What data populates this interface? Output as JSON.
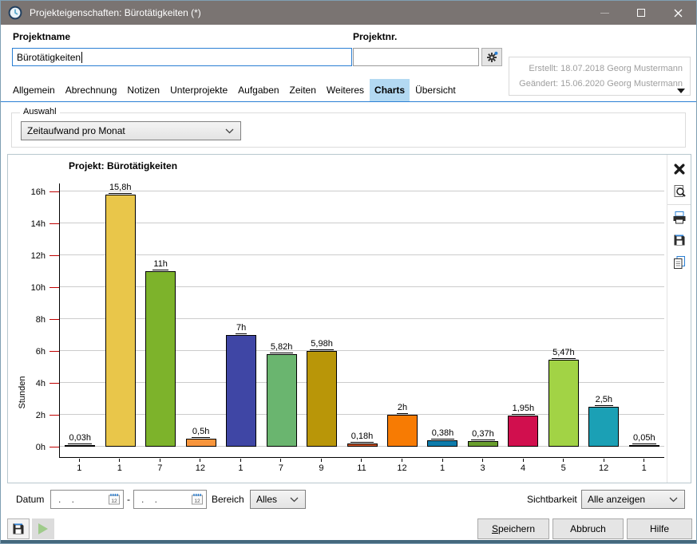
{
  "window": {
    "title": "Projekteigenschaften: Bürotätigkeiten (*)"
  },
  "form": {
    "projektname_label": "Projektname",
    "projektname_value": "Bürotätigkeiten",
    "projektnr_label": "Projektnr.",
    "projektnr_value": ""
  },
  "meta": {
    "created": "Erstellt: 18.07.2018 Georg Mustermann",
    "modified": "Geändert: 15.06.2020 Georg Mustermann"
  },
  "tabs": [
    {
      "label": "Allgemein",
      "active": false
    },
    {
      "label": "Abrechnung",
      "active": false
    },
    {
      "label": "Notizen",
      "active": false
    },
    {
      "label": "Unterprojekte",
      "active": false
    },
    {
      "label": "Aufgaben",
      "active": false
    },
    {
      "label": "Zeiten",
      "active": false
    },
    {
      "label": "Weiteres",
      "active": false
    },
    {
      "label": "Charts",
      "active": true
    },
    {
      "label": "Übersicht",
      "active": false
    }
  ],
  "auswahl": {
    "legend": "Auswahl",
    "selected": "Zeitaufwand pro Monat"
  },
  "chart_toolbar": {
    "icons": [
      "close-icon",
      "preview-icon",
      "print-icon",
      "save-icon",
      "copy-icon"
    ]
  },
  "chart_data": {
    "type": "bar",
    "title": "Projekt: Bürotätigkeiten",
    "xlabel": "",
    "ylabel": "Stunden",
    "categories": [
      "1",
      "1",
      "7",
      "12",
      "1",
      "7",
      "9",
      "11",
      "12",
      "1",
      "3",
      "4",
      "5",
      "12",
      "1"
    ],
    "values": [
      0.03,
      15.8,
      11,
      0.5,
      7,
      5.82,
      5.98,
      0.18,
      2,
      0.38,
      0.37,
      1.95,
      5.47,
      2.5,
      0.05
    ],
    "bar_labels": [
      "0,03h",
      "15,8h",
      "11h",
      "0,5h",
      "7h",
      "5,82h",
      "5,98h",
      "0,18h",
      "2h",
      "0,38h",
      "0,37h",
      "1,95h",
      "5,47h",
      "2,5h",
      "0,05h"
    ],
    "bar_colors": [
      "#1a1a1a",
      "#e9c64a",
      "#7db32b",
      "#f8953c",
      "#3f46a5",
      "#6ab56f",
      "#b99608",
      "#c75024",
      "#f77b03",
      "#0d7bab",
      "#699e2d",
      "#d10f4e",
      "#a2d345",
      "#1ba0b5",
      "#1a1a1a"
    ],
    "ylim": [
      0,
      16.6
    ],
    "ytick_values": [
      0,
      2,
      4,
      6,
      8,
      10,
      12,
      14,
      16
    ],
    "ytick_labels": [
      "0h",
      "2h",
      "4h",
      "6h",
      "8h",
      "10h",
      "12h",
      "14h",
      "16h"
    ],
    "grid": true,
    "legend_position": "none",
    "tick_color": "#c00000",
    "grid_color": "#cccccc"
  },
  "filter": {
    "datum_label": "Datum",
    "date_from": ". .",
    "date_to": ". .",
    "range_separator": "-",
    "bereich_label": "Bereich",
    "bereich_value": "Alles",
    "sichtbarkeit_label": "Sichtbarkeit",
    "sichtbarkeit_value": "Alle anzeigen"
  },
  "footer": {
    "speichern_label": "Speichern",
    "abbruch_label": "Abbruch",
    "hilfe_label": "Hilfe"
  }
}
